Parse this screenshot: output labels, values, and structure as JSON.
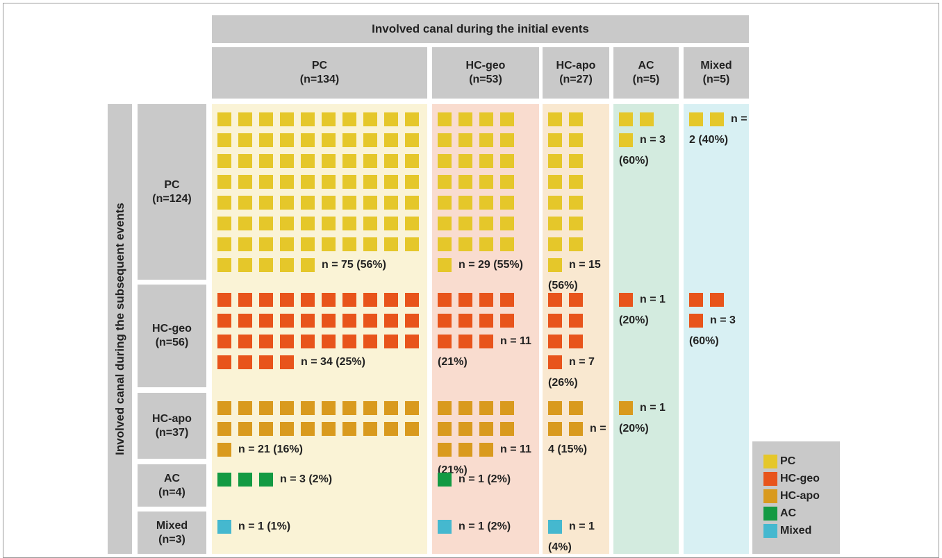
{
  "header": {
    "title": "Involved canal during the initial events"
  },
  "side_title": "Involved canal during the subsequent events",
  "columns": [
    {
      "name": "PC",
      "n": "(n=134)"
    },
    {
      "name": "HC-geo",
      "n": "(n=53)"
    },
    {
      "name": "HC-apo",
      "n": "(n=27)"
    },
    {
      "name": "AC",
      "n": "(n=5)"
    },
    {
      "name": "Mixed",
      "n": "(n=5)"
    }
  ],
  "rows": [
    {
      "name": "PC",
      "n": "(n=124)",
      "color": "#e5c72a",
      "cells": [
        {
          "count": 75,
          "label": "n = 75 (56%)"
        },
        {
          "count": 29,
          "label": "n = 29 (55%)"
        },
        {
          "count": 15,
          "label": "n = 15 (56%)"
        },
        {
          "count": 3,
          "label": "n = 3 (60%)"
        },
        {
          "count": 2,
          "label": "n = 2 (40%)"
        }
      ]
    },
    {
      "name": "HC-geo",
      "n": "(n=56)",
      "color": "#e8541b",
      "cells": [
        {
          "count": 34,
          "label": "n = 34 (25%)"
        },
        {
          "count": 11,
          "label": "n = 11 (21%)"
        },
        {
          "count": 7,
          "label": "n = 7 (26%)"
        },
        {
          "count": 1,
          "label": "n = 1 (20%)"
        },
        {
          "count": 3,
          "label": "n = 3 (60%)"
        }
      ]
    },
    {
      "name": "HC-apo",
      "n": "(n=37)",
      "color": "#d99a1e",
      "cells": [
        {
          "count": 21,
          "label": "n = 21 (16%)"
        },
        {
          "count": 11,
          "label": "n = 11 (21%)"
        },
        {
          "count": 4,
          "label": "n = 4 (15%)"
        },
        {
          "count": 1,
          "label": "n = 1 (20%)"
        },
        null
      ]
    },
    {
      "name": "AC",
      "n": "(n=4)",
      "color": "#139a43",
      "cells": [
        {
          "count": 3,
          "label": "n = 3 (2%)"
        },
        {
          "count": 1,
          "label": "n = 1 (2%)"
        },
        null,
        null,
        null
      ]
    },
    {
      "name": "Mixed",
      "n": "(n=3)",
      "color": "#45b8cf",
      "cells": [
        {
          "count": 1,
          "label": "n = 1 (1%)"
        },
        {
          "count": 1,
          "label": "n = 1 (2%)"
        },
        {
          "count": 1,
          "label": "n = 1 (4%)"
        },
        null,
        null
      ]
    }
  ],
  "legend": [
    "PC",
    "HC-geo",
    "HC-apo",
    "AC",
    "Mixed"
  ]
}
